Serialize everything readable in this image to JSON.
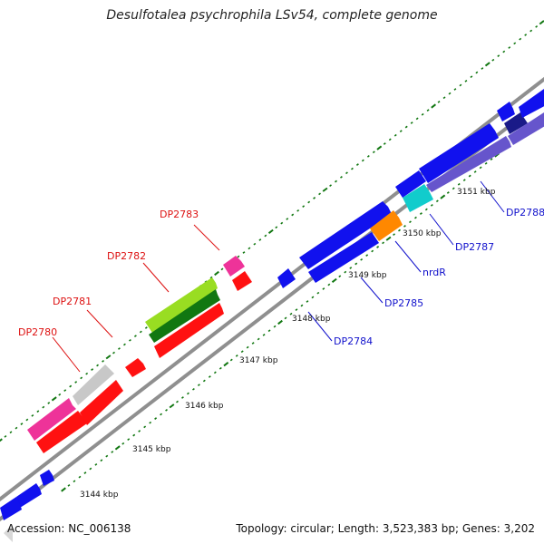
{
  "title": "Desulfotalea psychrophila LSv54, complete genome",
  "footer": {
    "accession": "Accession: NC_006138",
    "summary": "Topology: circular; Length: 3,523,383 bp; Genes: 3,202"
  },
  "colors": {
    "backbone": "#8f8f8f",
    "tick": "#117711",
    "forward_label": "#dd1111",
    "reverse_label": "#1111cc"
  },
  "kbp_labels": [
    {
      "text": "3144 kbp",
      "kbp": 3144
    },
    {
      "text": "3145 kbp",
      "kbp": 3145
    },
    {
      "text": "3146 kbp",
      "kbp": 3146
    },
    {
      "text": "3147 kbp",
      "kbp": 3147
    },
    {
      "text": "3148 kbp",
      "kbp": 3148
    },
    {
      "text": "3149 kbp",
      "kbp": 3149
    },
    {
      "text": "3150 kbp",
      "kbp": 3150
    },
    {
      "text": "3151 kbp",
      "kbp": 3151
    }
  ],
  "forward_genes": [
    {
      "label": "DP2780"
    },
    {
      "label": "DP2781"
    },
    {
      "label": "DP2782"
    },
    {
      "label": "DP2783"
    }
  ],
  "reverse_genes": [
    {
      "label": "DP2784"
    },
    {
      "label": "DP2785"
    },
    {
      "label": "nrdR"
    },
    {
      "label": "DP2787"
    },
    {
      "label": "DP2788"
    }
  ]
}
